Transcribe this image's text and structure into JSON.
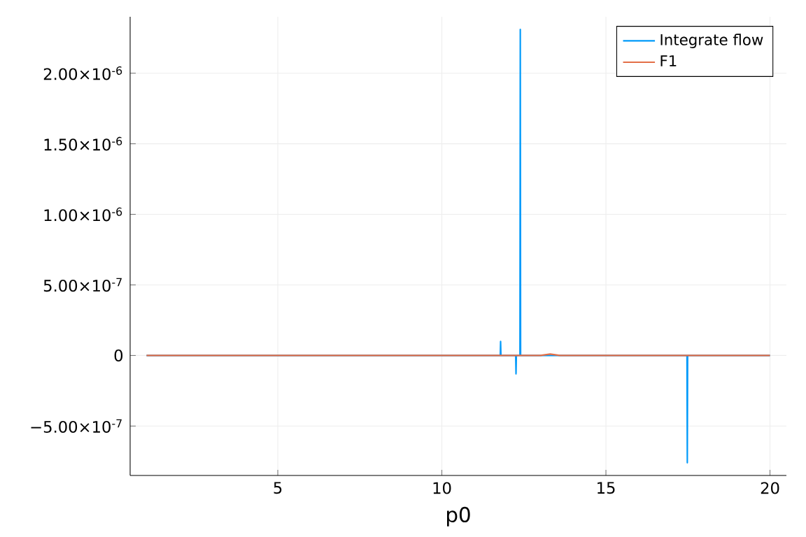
{
  "chart_data": {
    "type": "line",
    "xlabel": "p0",
    "xlim": [
      0.5,
      20.5
    ],
    "ylim": [
      -8.5e-07,
      2.4e-06
    ],
    "xticks": [
      5,
      10,
      15,
      20
    ],
    "yticks": [
      {
        "value": -5e-07,
        "label": "−5.00×10$^{-7}$"
      },
      0,
      {
        "value": 5e-07,
        "label": "5.00×10$^{-7}$"
      },
      {
        "value": 1e-06,
        "label": "1.00×10$^{-6}$"
      },
      {
        "value": 1.5e-06,
        "label": "1.50×10$^{-6}$"
      },
      {
        "value": 2e-06,
        "label": "2.00×10$^{-6}$"
      }
    ],
    "grid": true,
    "legend": "top right",
    "line_style": "solid",
    "series": [
      {
        "name": "Integrate flow",
        "color": "#009afa",
        "x": [
          1,
          11.78,
          11.79,
          11.8,
          12.25,
          12.26,
          12.27,
          12.38,
          12.39,
          12.4,
          17.47,
          17.48,
          17.49,
          20
        ],
        "values": [
          0,
          0,
          1e-07,
          0,
          0,
          -1.3e-07,
          0,
          0,
          2.31e-06,
          0,
          0,
          -7.6e-07,
          0,
          0
        ]
      },
      {
        "name": "F1",
        "color": "#e36f47",
        "x": [
          1,
          13.0,
          13.3,
          13.6,
          20
        ],
        "values": [
          0,
          0,
          1e-08,
          0,
          0
        ]
      }
    ]
  }
}
